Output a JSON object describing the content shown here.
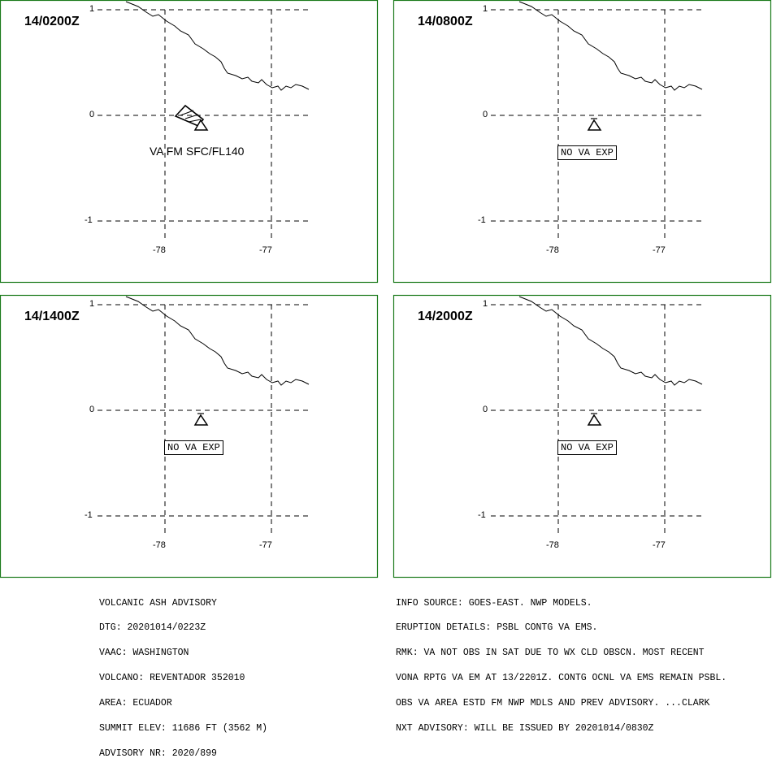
{
  "panels": [
    {
      "valid_time": "14/0200Z",
      "label": "VA FM SFC/FL140",
      "label_style": "text"
    },
    {
      "valid_time": "14/0800Z",
      "label": "NO VA EXP",
      "label_style": "box"
    },
    {
      "valid_time": "14/1400Z",
      "label": "NO VA EXP",
      "label_style": "box"
    },
    {
      "valid_time": "14/2000Z",
      "label": "NO VA EXP",
      "label_style": "box"
    }
  ],
  "grid": {
    "lat_labels": [
      "1",
      "0",
      "-1"
    ],
    "lon_labels": [
      "-78",
      "-77"
    ]
  },
  "advisory_left": [
    "VOLCANIC ASH ADVISORY",
    "DTG: 20201014/0223Z",
    "VAAC: WASHINGTON",
    "VOLCANO: REVENTADOR 352010",
    "AREA: ECUADOR",
    "SUMMIT ELEV: 11686 FT (3562 M)",
    "ADVISORY NR: 2020/899"
  ],
  "advisory_right": [
    "INFO SOURCE: GOES-EAST. NWP MODELS.",
    "ERUPTION DETAILS: PSBL CONTG VA EMS.",
    "RMK: VA NOT OBS IN SAT DUE TO WX CLD OBSCN. MOST RECENT",
    "VONA RPTG VA EM AT 13/2201Z. CONTG OCNL VA EMS REMAIN PSBL.",
    "OBS VA AREA ESTD FM NWP MDLS AND PREV ADVISORY. ...CLARK",
    "NXT ADVISORY: WILL BE ISSUED BY 20201014/0830Z"
  ],
  "colors": {
    "frame": "#1a7a1a",
    "lines": "#000000"
  },
  "icons": {
    "volcano": "volcano-triangle-icon",
    "ash_area": "ash-cloud-polygon"
  }
}
